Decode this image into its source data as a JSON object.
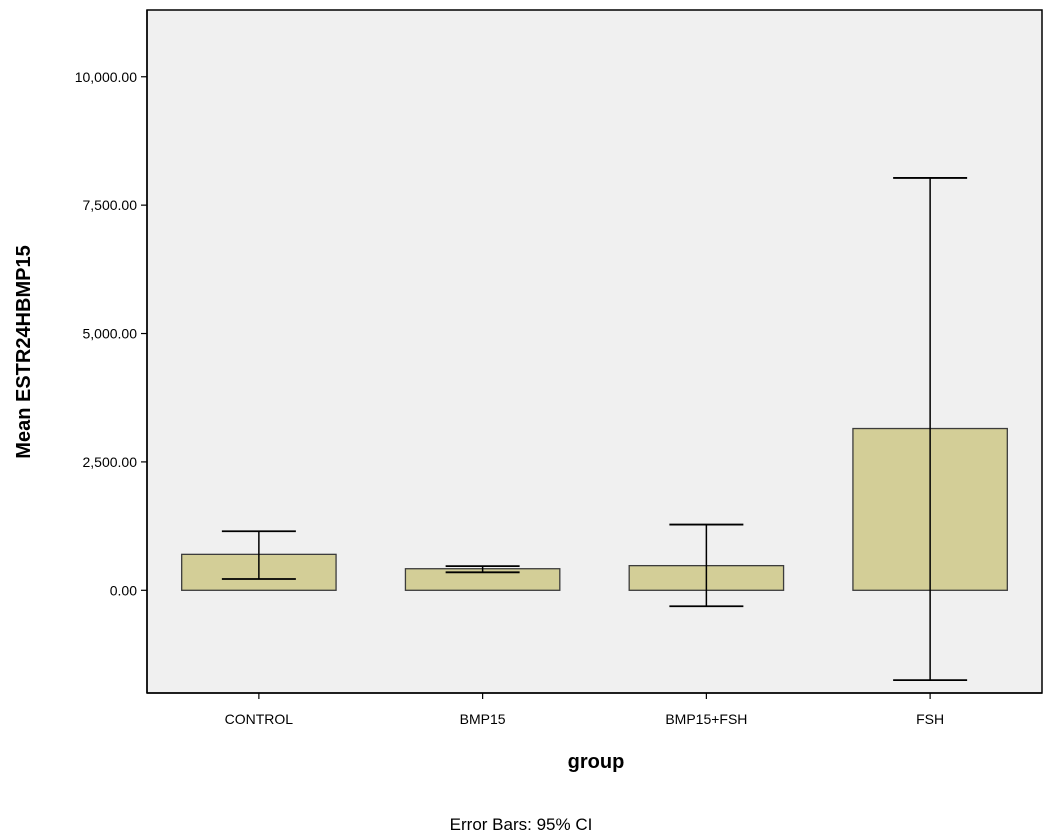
{
  "chart_data": {
    "type": "bar",
    "categories": [
      "CONTROL",
      "BMP15",
      "BMP15+FSH",
      "FSH"
    ],
    "values": [
      700,
      420,
      480,
      3150
    ],
    "error_bars": {
      "type": "95% CI",
      "lower": [
        220,
        350,
        -310,
        -1750
      ],
      "upper": [
        1150,
        470,
        1280,
        8030
      ]
    },
    "xlabel": "group",
    "ylabel": "Mean ESTR24HBMP15",
    "ylim": [
      -2000,
      11300
    ],
    "yticks": [
      0,
      2500,
      5000,
      7500,
      10000
    ],
    "ytick_labels": [
      "0.00",
      "2,500.00",
      "5,000.00",
      "7,500.00",
      "10,000.00"
    ],
    "footnote": "Error Bars: 95% CI",
    "grid": false,
    "legend": "none",
    "colors": {
      "plot_background": "#f0f0f0",
      "bar_fill": "#d3ce97",
      "bar_stroke": "#3c3c3c",
      "error_bar": "#000000"
    }
  }
}
